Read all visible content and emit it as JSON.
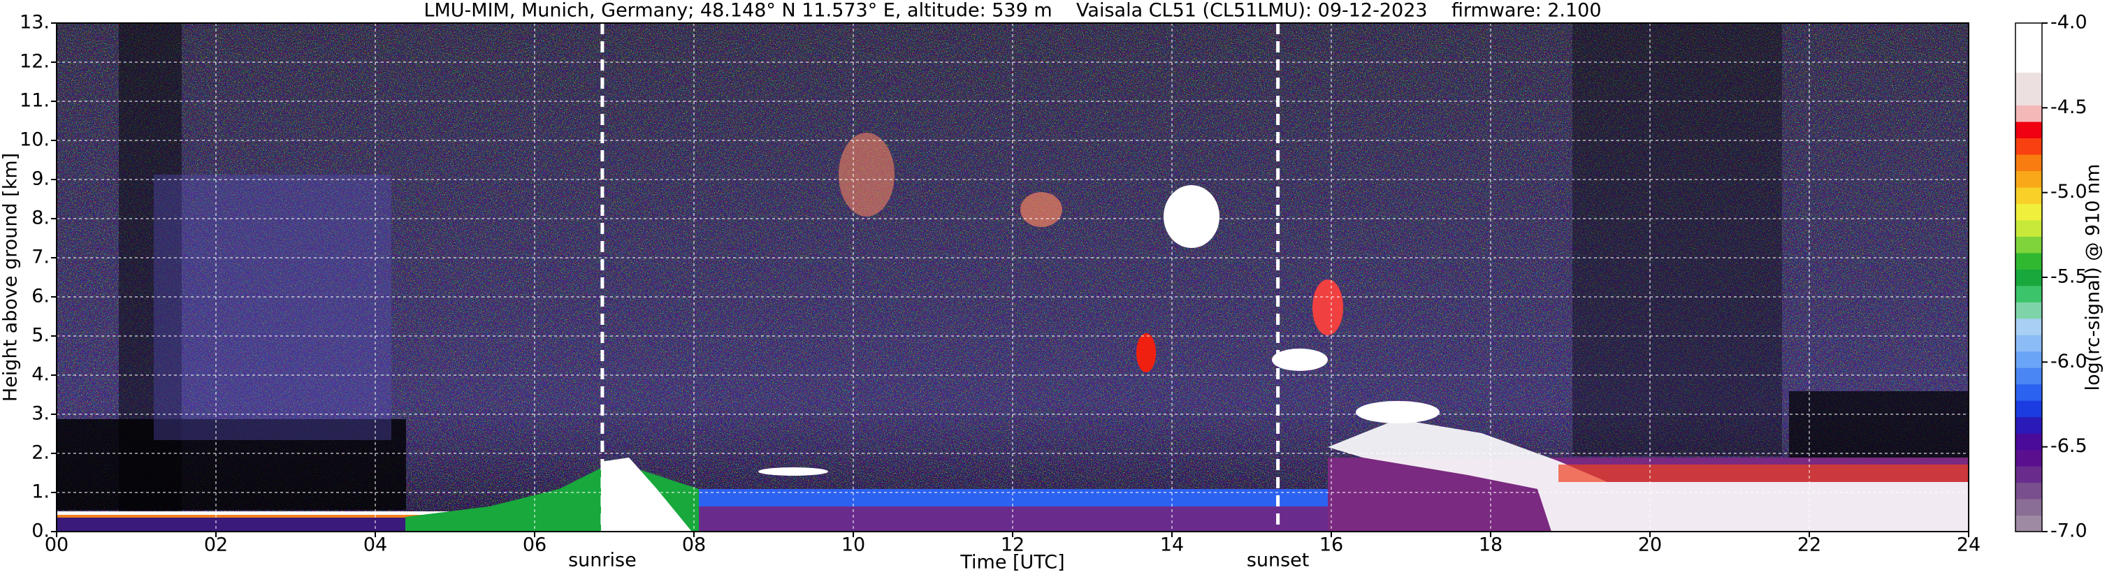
{
  "chart_data": {
    "type": "heatmap",
    "title": "LMU-MIM, Munich, Germany; 48.148° N 11.573° E, altitude: 539 m    Vaisala CL51 (CL51LMU): 09-12-2023    firmware: 2.100",
    "x_label": "Time [UTC]",
    "y_label": "Height above ground [km]",
    "xlim": [
      0,
      24
    ],
    "ylim": [
      0,
      13
    ],
    "xticks": [
      {
        "value": 0,
        "label": "00"
      },
      {
        "value": 2,
        "label": "02"
      },
      {
        "value": 4,
        "label": "04"
      },
      {
        "value": 6,
        "label": "06"
      },
      {
        "value": 8,
        "label": "08"
      },
      10,
      12,
      14,
      16,
      18,
      20,
      22,
      24
    ],
    "yticks": [
      {
        "value": 0,
        "label": "0."
      },
      {
        "value": 1,
        "label": "1."
      },
      {
        "value": 2,
        "label": "2."
      },
      {
        "value": 3,
        "label": "3."
      },
      {
        "value": 4,
        "label": "4."
      },
      {
        "value": 5,
        "label": "5."
      },
      {
        "value": 6,
        "label": "6."
      },
      {
        "value": 7,
        "label": "7."
      },
      {
        "value": 8,
        "label": "8."
      },
      {
        "value": 9,
        "label": "9."
      },
      {
        "value": 10,
        "label": "10."
      },
      {
        "value": 11,
        "label": "11."
      },
      {
        "value": 12,
        "label": "12."
      },
      {
        "value": 13,
        "label": "13."
      }
    ],
    "grid": true,
    "annotations": [
      {
        "text": "sunrise",
        "x": 6.85
      },
      {
        "text": "sunset",
        "x": 15.33
      }
    ],
    "colorbar": {
      "label": "log(rc-signal) @ 910 nm",
      "lim": [
        -7,
        -4
      ],
      "ticks": [
        {
          "value": -4,
          "label": "-4.0"
        },
        -4.5,
        {
          "value": -5,
          "label": "-5.0"
        },
        -5.5,
        {
          "value": -6,
          "label": "-6.0"
        },
        -6.5,
        {
          "value": -7,
          "label": "-7.0"
        }
      ],
      "colors": [
        "#9e8aa2",
        "#8a6e96",
        "#7a4f8e",
        "#6a2c8c",
        "#5a108e",
        "#4a0a9a",
        "#2a1ab8",
        "#1a3ce0",
        "#2c62f0",
        "#4a86f4",
        "#6aa4f6",
        "#8cbcf6",
        "#a8d0f4",
        "#7ed4a8",
        "#3cc46a",
        "#18a83c",
        "#30b830",
        "#7ed43a",
        "#c8e83a",
        "#f0f03c",
        "#f8d028",
        "#f8a818",
        "#f87c10",
        "#f84010",
        "#f00010",
        "#f4b8b8",
        "#ece0e0",
        "#ece0e0",
        "#ffffff",
        "#ffffff",
        "#ffffff"
      ]
    }
  }
}
